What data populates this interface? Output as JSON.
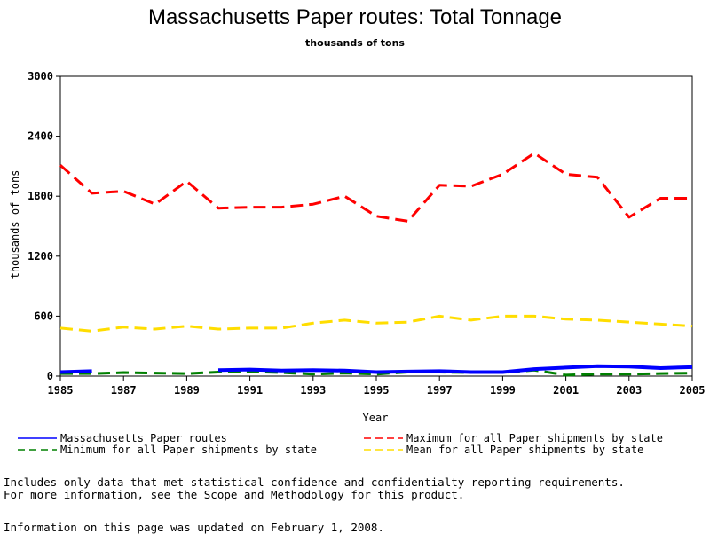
{
  "page": {
    "title": "Massachusetts Paper routes: Total Tonnage",
    "subtitle": "thousands of tons",
    "note_line1": "Includes only data that met statistical confidence and confidentialty reporting requirements.",
    "note_line2": "For more information, see the Scope and Methodology for this product.",
    "updated": "Information on this page was updated on February 1, 2008."
  },
  "chart_data": {
    "type": "line",
    "title": "Massachusetts Paper routes: Total Tonnage",
    "subtitle": "thousands of tons",
    "xlabel": "Year",
    "ylabel": "thousands of tons",
    "xlim": [
      1985,
      2005
    ],
    "ylim": [
      0,
      3000
    ],
    "x_ticks": [
      1985,
      1987,
      1989,
      1991,
      1993,
      1995,
      1997,
      1999,
      2001,
      2003,
      2005
    ],
    "y_ticks": [
      0,
      600,
      1200,
      1800,
      2400,
      3000
    ],
    "x": [
      1985,
      1986,
      1987,
      1988,
      1989,
      1990,
      1991,
      1992,
      1993,
      1994,
      1995,
      1996,
      1997,
      1998,
      1999,
      2000,
      2001,
      2002,
      2003,
      2004,
      2005
    ],
    "legend_placement": "bottom",
    "series": [
      {
        "name": "Massachusetts Paper routes",
        "color": "#0000ff",
        "style": "solid",
        "values": [
          40,
          50,
          null,
          null,
          null,
          60,
          65,
          55,
          60,
          55,
          40,
          45,
          50,
          40,
          40,
          70,
          85,
          100,
          95,
          80,
          90
        ]
      },
      {
        "name": "Maximum for all Paper shipments by state",
        "color": "#ff0000",
        "style": "dashed",
        "values": [
          2110,
          1830,
          1850,
          1720,
          1950,
          1680,
          1690,
          1690,
          1720,
          1800,
          1600,
          1550,
          1910,
          1900,
          2020,
          2230,
          2020,
          1990,
          1590,
          1780,
          1780
        ]
      },
      {
        "name": "Minimum for all Paper shipments by state",
        "color": "#008000",
        "style": "dashed",
        "values": [
          25,
          25,
          35,
          30,
          25,
          40,
          45,
          35,
          20,
          30,
          20,
          40,
          40,
          35,
          35,
          60,
          10,
          20,
          20,
          25,
          30
        ]
      },
      {
        "name": "Mean for all Paper shipments by state",
        "color": "#ffdd00",
        "style": "dashed",
        "values": [
          480,
          450,
          490,
          470,
          500,
          470,
          480,
          480,
          530,
          560,
          530,
          540,
          600,
          560,
          600,
          600,
          570,
          560,
          540,
          520,
          500
        ]
      }
    ]
  }
}
